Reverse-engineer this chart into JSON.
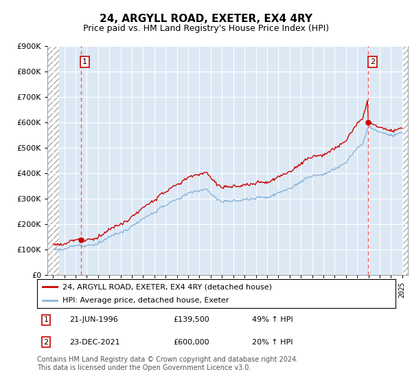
{
  "title": "24, ARGYLL ROAD, EXETER, EX4 4RY",
  "subtitle": "Price paid vs. HM Land Registry's House Price Index (HPI)",
  "sale1_date": 1996.47,
  "sale1_price": 139500,
  "sale2_date": 2021.98,
  "sale2_price": 600000,
  "hpi_line_color": "#8ab4d8",
  "sale_line_color": "#cc0000",
  "sale_dot_color": "#cc0000",
  "dashed_line_color": "#ff5555",
  "ylim_min": 0,
  "ylim_max": 900000,
  "xlim_min": 1993.5,
  "xlim_max": 2025.5,
  "hatch_left_end": 1994.55,
  "hatch_right_start": 2025.05,
  "legend_label1": "24, ARGYLL ROAD, EXETER, EX4 4RY (detached house)",
  "legend_label2": "HPI: Average price, detached house, Exeter",
  "note1_date": "21-JUN-1996",
  "note1_price": "£139,500",
  "note1_hpi": "49% ↑ HPI",
  "note2_date": "23-DEC-2021",
  "note2_price": "£600,000",
  "note2_hpi": "20% ↑ HPI",
  "footnote": "Contains HM Land Registry data © Crown copyright and database right 2024.\nThis data is licensed under the Open Government Licence v3.0.",
  "background_color": "#dce9f5",
  "hatch_color": "#aaaaaa",
  "grid_color": "#ffffff",
  "title_fontsize": 11,
  "subtitle_fontsize": 9
}
